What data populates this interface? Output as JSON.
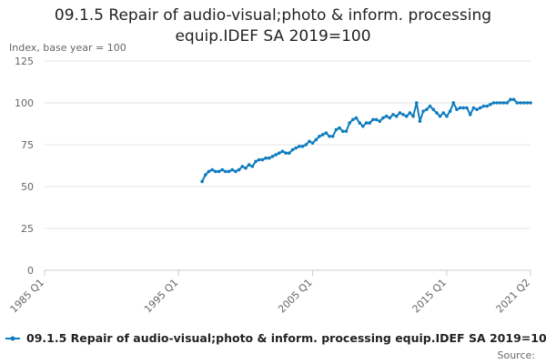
{
  "chart_data": {
    "type": "line",
    "title": "09.1.5 Repair of audio-visual;photo & inform. processing equip.IDEF SA 2019=100",
    "y_label": "Index, base year = 100",
    "source": "Source:",
    "categories": [
      "1985 Q1",
      null,
      null,
      null,
      null,
      null,
      null,
      null,
      null,
      null,
      null,
      null,
      null,
      null,
      null,
      null,
      null,
      null,
      null,
      null,
      null,
      null,
      null,
      null,
      null,
      null,
      null,
      null,
      null,
      null,
      null,
      null,
      null,
      null,
      null,
      null,
      null,
      null,
      null,
      null,
      "1995 Q1",
      null,
      null,
      null,
      null,
      null,
      null,
      null,
      null,
      null,
      null,
      null,
      null,
      null,
      null,
      null,
      null,
      null,
      null,
      null,
      null,
      null,
      null,
      null,
      null,
      null,
      null,
      null,
      null,
      null,
      null,
      null,
      null,
      null,
      null,
      null,
      null,
      null,
      null,
      null,
      "2005 Q1",
      null,
      null,
      null,
      null,
      null,
      null,
      null,
      null,
      null,
      null,
      null,
      null,
      null,
      null,
      null,
      null,
      null,
      null,
      null,
      null,
      null,
      null,
      null,
      null,
      null,
      null,
      null,
      null,
      null,
      null,
      null,
      null,
      null,
      null,
      null,
      null,
      null,
      null,
      null,
      "2015 Q1",
      null,
      null,
      null,
      null,
      null,
      null,
      null,
      null,
      null,
      null,
      null,
      null,
      null,
      null,
      null,
      null,
      null,
      null,
      null,
      null,
      null,
      null,
      null,
      null,
      "2021 Q2"
    ],
    "series": [
      {
        "name": "09.1.5 Repair of audio-visual;photo & inform. processing equip.IDEF SA 2019=100",
        "color": "#0f7cbf",
        "values": [
          null,
          null,
          null,
          null,
          null,
          null,
          null,
          null,
          null,
          null,
          null,
          null,
          null,
          null,
          null,
          null,
          null,
          null,
          null,
          null,
          null,
          null,
          null,
          null,
          null,
          null,
          null,
          null,
          null,
          null,
          null,
          null,
          null,
          null,
          null,
          null,
          null,
          null,
          null,
          null,
          null,
          null,
          null,
          null,
          null,
          null,
          null,
          53,
          57,
          59,
          60,
          59,
          59,
          60,
          59,
          59,
          60,
          59,
          60,
          62,
          61,
          63,
          62,
          65,
          66,
          66,
          67,
          67,
          68,
          69,
          70,
          71,
          70,
          70,
          72,
          73,
          74,
          74,
          75,
          77,
          76,
          78,
          80,
          81,
          82,
          80,
          80,
          84,
          85,
          83,
          83,
          88,
          90,
          91,
          88,
          86,
          88,
          88,
          90,
          90,
          89,
          91,
          92,
          91,
          93,
          92,
          94,
          93,
          92,
          94,
          92,
          100,
          89,
          95,
          96,
          98,
          96,
          94,
          92,
          94,
          92,
          95,
          100,
          96,
          97,
          97,
          97,
          93,
          97,
          96,
          97,
          98,
          98,
          99,
          100,
          100,
          100,
          100,
          100,
          102,
          102,
          100,
          100,
          100,
          100,
          100
        ]
      }
    ],
    "ylim": [
      0,
      125
    ],
    "yticks": [
      0,
      25,
      50,
      75,
      100,
      125
    ],
    "grid": true
  }
}
